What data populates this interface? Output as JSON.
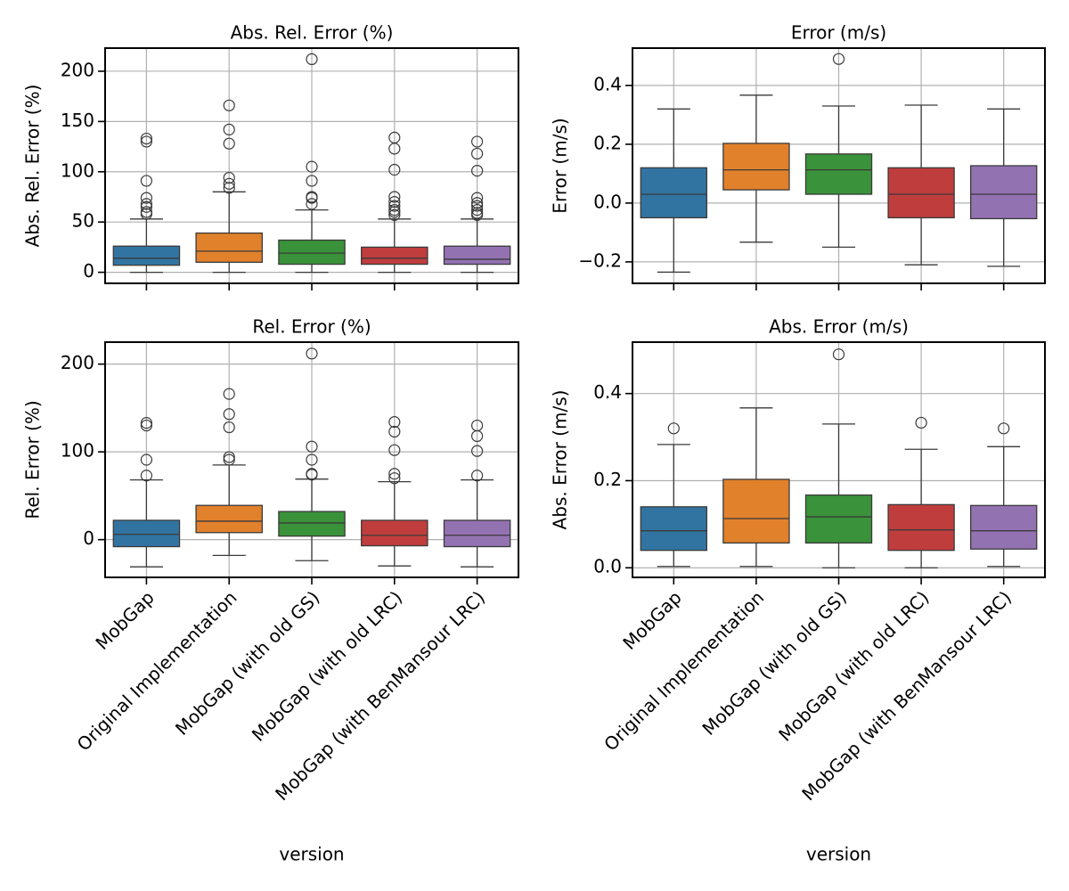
{
  "chart_data": [
    {
      "type": "box",
      "title": "Abs. Rel. Error (%)",
      "ylabel": "Abs. Rel. Error (%)",
      "ylim": [
        -11,
        223
      ],
      "yticks": [
        0,
        50,
        100,
        150,
        200
      ],
      "grid": true,
      "boxes": [
        {
          "color": "#3274a1",
          "whislo": 0,
          "q1": 7,
          "med": 14,
          "q3": 26,
          "whishi": 53,
          "fliers": [
            58,
            60,
            65,
            68,
            74,
            91,
            130,
            133
          ]
        },
        {
          "color": "#e1812c",
          "whislo": 0,
          "q1": 10,
          "med": 21,
          "q3": 39,
          "whishi": 80,
          "fliers": [
            84,
            88,
            94,
            128,
            142,
            166
          ]
        },
        {
          "color": "#3a923a",
          "whislo": 0,
          "q1": 8,
          "med": 19,
          "q3": 32,
          "whishi": 62,
          "fliers": [
            68,
            74,
            75,
            91,
            105,
            212
          ]
        },
        {
          "color": "#c03d3e",
          "whislo": 0,
          "q1": 8,
          "med": 14,
          "q3": 25,
          "whishi": 53,
          "fliers": [
            57,
            60,
            62,
            66,
            70,
            75,
            102,
            123,
            134
          ]
        },
        {
          "color": "#9372b2",
          "whislo": 0,
          "q1": 8,
          "med": 13,
          "q3": 26,
          "whishi": 53,
          "fliers": [
            57,
            59,
            62,
            66,
            69,
            74,
            101,
            118,
            130
          ]
        }
      ]
    },
    {
      "type": "box",
      "title": "Error (m/s)",
      "ylabel": "Error (m/s)",
      "ylim": [
        -0.273,
        0.527
      ],
      "yticks": [
        {
          "value": -0.2,
          "label": "−0.2"
        },
        {
          "value": 0,
          "label": "0.0"
        },
        0.2,
        0.4
      ],
      "grid": true,
      "boxes": [
        {
          "color": "#3274a1",
          "whislo": -0.235,
          "q1": -0.05,
          "med": 0.03,
          "q3": 0.12,
          "whishi": 0.32,
          "fliers": []
        },
        {
          "color": "#e1812c",
          "whislo": -0.133,
          "q1": 0.045,
          "med": 0.113,
          "q3": 0.203,
          "whishi": 0.367,
          "fliers": []
        },
        {
          "color": "#3a923a",
          "whislo": -0.15,
          "q1": 0.03,
          "med": 0.113,
          "q3": 0.167,
          "whishi": 0.33,
          "fliers": [
            0.49
          ]
        },
        {
          "color": "#c03d3e",
          "whislo": -0.21,
          "q1": -0.05,
          "med": 0.03,
          "q3": 0.12,
          "whishi": 0.333,
          "fliers": []
        },
        {
          "color": "#9372b2",
          "whislo": -0.215,
          "q1": -0.053,
          "med": 0.03,
          "q3": 0.127,
          "whishi": 0.32,
          "fliers": []
        }
      ]
    },
    {
      "type": "box",
      "title": "Rel. Error (%)",
      "ylabel": "Rel. Error (%)",
      "xlabel": "version",
      "categories": [
        "MobGap",
        "Original Implementation",
        "MobGap (with old GS)",
        "MobGap (with old LRC)",
        "MobGap (with BenMansour LRC)"
      ],
      "ylim": [
        -43,
        225
      ],
      "yticks": [
        0,
        100,
        200
      ],
      "grid": true,
      "boxes": [
        {
          "color": "#3274a1",
          "whislo": -31,
          "q1": -8,
          "med": 6,
          "q3": 22,
          "whishi": 68,
          "fliers": [
            73,
            91,
            130,
            133
          ]
        },
        {
          "color": "#e1812c",
          "whislo": -18,
          "q1": 8,
          "med": 21,
          "q3": 39,
          "whishi": 85,
          "fliers": [
            91,
            94,
            128,
            143,
            166
          ]
        },
        {
          "color": "#3a923a",
          "whislo": -24,
          "q1": 4,
          "med": 19,
          "q3": 32,
          "whishi": 69,
          "fliers": [
            74,
            75,
            91,
            106,
            212
          ]
        },
        {
          "color": "#c03d3e",
          "whislo": -30,
          "q1": -7,
          "med": 5,
          "q3": 22,
          "whishi": 66,
          "fliers": [
            70,
            75,
            102,
            123,
            134
          ]
        },
        {
          "color": "#9372b2",
          "whislo": -31,
          "q1": -8,
          "med": 5,
          "q3": 22,
          "whishi": 68,
          "fliers": [
            73,
            101,
            118,
            130
          ]
        }
      ]
    },
    {
      "type": "box",
      "title": "Abs. Error (m/s)",
      "ylabel": "Abs. Error (m/s)",
      "xlabel": "version",
      "categories": [
        "MobGap",
        "Original Implementation",
        "MobGap (with old GS)",
        "MobGap (with old LRC)",
        "MobGap (with BenMansour LRC)"
      ],
      "ylim": [
        -0.022,
        0.518
      ],
      "yticks": [
        {
          "value": 0,
          "label": "0.0"
        },
        0.2,
        0.4
      ],
      "grid": true,
      "boxes": [
        {
          "color": "#3274a1",
          "whislo": 0.003,
          "q1": 0.04,
          "med": 0.085,
          "q3": 0.14,
          "whishi": 0.283,
          "fliers": [
            0.32
          ]
        },
        {
          "color": "#e1812c",
          "whislo": 0.003,
          "q1": 0.057,
          "med": 0.113,
          "q3": 0.203,
          "whishi": 0.367,
          "fliers": []
        },
        {
          "color": "#3a923a",
          "whislo": 0,
          "q1": 0.057,
          "med": 0.117,
          "q3": 0.167,
          "whishi": 0.33,
          "fliers": [
            0.49
          ]
        },
        {
          "color": "#c03d3e",
          "whislo": 0,
          "q1": 0.04,
          "med": 0.087,
          "q3": 0.145,
          "whishi": 0.272,
          "fliers": [
            0.333
          ]
        },
        {
          "color": "#9372b2",
          "whislo": 0.003,
          "q1": 0.043,
          "med": 0.085,
          "q3": 0.143,
          "whishi": 0.278,
          "fliers": [
            0.32
          ]
        }
      ]
    }
  ]
}
